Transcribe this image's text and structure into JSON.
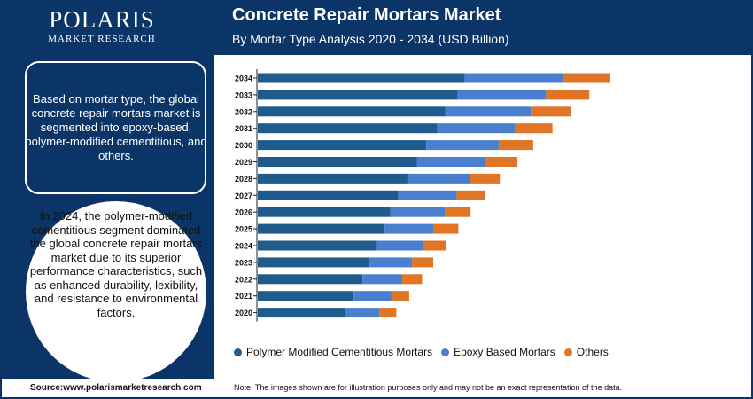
{
  "brand": {
    "logo_main": "POLARIS",
    "logo_sub": "MARKET RESEARCH"
  },
  "header": {
    "title": "Concrete Repair Mortars Market",
    "subtitle": "By Mortar Type Analysis 2020 - 2034 (USD Billion)"
  },
  "sidebar": {
    "segment_text": "Based on mortar type, the global concrete repair mortars market is segmented into epoxy-based, polymer-modified cementitious, and others.",
    "insight_text": "In 2024, the polymer-modified cementitious segment dominated the global concrete repair mortars market due to its superior performance characteristics, such as enhanced durability, lexibility, and resistance to environmental factors."
  },
  "chart_data": {
    "type": "bar",
    "orientation": "horizontal",
    "stacked": true,
    "categories": [
      "2034",
      "2033",
      "2032",
      "2031",
      "2030",
      "2029",
      "2028",
      "2027",
      "2026",
      "2025",
      "2024",
      "2023",
      "2022",
      "2021",
      "2020"
    ],
    "series": [
      {
        "name": "Polymer Modified Cementitious Mortars",
        "color": "#1f5c8d",
        "values": [
          35.4,
          34.2,
          32.1,
          30.7,
          28.8,
          27.2,
          25.6,
          24.0,
          22.7,
          21.7,
          20.4,
          19.1,
          17.9,
          16.4,
          15.0
        ]
      },
      {
        "name": "Epoxy Based Mortars",
        "color": "#4a7fd0",
        "values": [
          16.8,
          15.1,
          14.6,
          13.3,
          12.4,
          11.6,
          10.7,
          10.0,
          9.3,
          8.4,
          8.0,
          7.3,
          6.8,
          6.4,
          5.8
        ]
      },
      {
        "name": "Others",
        "color": "#e07525",
        "values": [
          8.1,
          7.4,
          6.8,
          6.4,
          5.9,
          5.6,
          5.1,
          4.9,
          4.4,
          4.2,
          3.8,
          3.6,
          3.4,
          3.1,
          2.9
        ]
      }
    ],
    "legend_position": "bottom",
    "grid": false
  },
  "footer": {
    "source": "Source:www.polarismarketresearch.com",
    "note": "Note: The images shown are for illustration purposes only and may not be an exact representation of the data."
  }
}
